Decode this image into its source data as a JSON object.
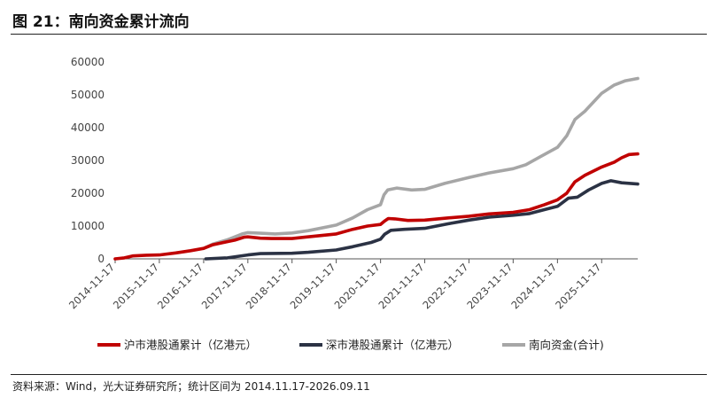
{
  "header": {
    "title": "图 21：南向资金累计流向"
  },
  "footer": {
    "source": "资料来源：Wind，光大证券研究所；统计区间为 2014.11.17-2026.09.11"
  },
  "chart_data": {
    "type": "line",
    "title": "图 21：南向资金累计流向",
    "xlabel": "",
    "ylabel": "",
    "ylim": [
      0,
      60000
    ],
    "yticks": [
      0,
      10000,
      20000,
      30000,
      40000,
      50000,
      60000
    ],
    "xticks": [
      "2014-11-17",
      "2015-11-17",
      "2016-11-17",
      "2017-11-17",
      "2018-11-17",
      "2019-11-17",
      "2020-11-17",
      "2021-11-17",
      "2022-11-17",
      "2023-11-17",
      "2024-11-17",
      "2025-11-17"
    ],
    "xlim": [
      "2014-11-17",
      "2026-09-11"
    ],
    "grid": false,
    "legend_position": "bottom",
    "series": [
      {
        "name": "沪市港股通累计（亿港元）",
        "color": "#c00000",
        "points": [
          [
            "2014-11-17",
            0
          ],
          [
            "2015-02-01",
            300
          ],
          [
            "2015-04-10",
            900
          ],
          [
            "2015-08-01",
            1100
          ],
          [
            "2015-11-17",
            1200
          ],
          [
            "2016-04-01",
            1800
          ],
          [
            "2016-08-01",
            2500
          ],
          [
            "2016-11-17",
            3200
          ],
          [
            "2017-02-01",
            4300
          ],
          [
            "2017-05-01",
            5000
          ],
          [
            "2017-08-01",
            5700
          ],
          [
            "2017-10-15",
            6600
          ],
          [
            "2017-11-17",
            6700
          ],
          [
            "2018-03-01",
            6300
          ],
          [
            "2018-06-01",
            6200
          ],
          [
            "2018-11-17",
            6200
          ],
          [
            "2019-03-01",
            6600
          ],
          [
            "2019-08-01",
            7200
          ],
          [
            "2019-11-17",
            7600
          ],
          [
            "2020-04-01",
            9000
          ],
          [
            "2020-08-01",
            10000
          ],
          [
            "2020-11-17",
            10500
          ],
          [
            "2020-12-20",
            11500
          ],
          [
            "2021-01-20",
            12300
          ],
          [
            "2021-03-15",
            12200
          ],
          [
            "2021-07-01",
            11700
          ],
          [
            "2021-11-17",
            11800
          ],
          [
            "2022-06-01",
            12500
          ],
          [
            "2022-11-17",
            13000
          ],
          [
            "2023-05-01",
            13700
          ],
          [
            "2023-11-17",
            14200
          ],
          [
            "2024-04-01",
            15000
          ],
          [
            "2024-08-01",
            16500
          ],
          [
            "2024-11-17",
            18000
          ],
          [
            "2025-02-01",
            20000
          ],
          [
            "2025-04-10",
            23500
          ],
          [
            "2025-07-01",
            25500
          ],
          [
            "2025-11-17",
            28000
          ],
          [
            "2026-03-01",
            29500
          ],
          [
            "2026-05-01",
            30800
          ],
          [
            "2026-07-01",
            31800
          ],
          [
            "2026-09-11",
            32000
          ]
        ]
      },
      {
        "name": "深市港股通累计（亿港元）",
        "color": "#2b3244",
        "points": [
          [
            "2016-12-05",
            0
          ],
          [
            "2017-06-01",
            300
          ],
          [
            "2017-11-17",
            1200
          ],
          [
            "2018-03-01",
            1600
          ],
          [
            "2018-11-17",
            1700
          ],
          [
            "2019-04-01",
            2000
          ],
          [
            "2019-11-17",
            2700
          ],
          [
            "2020-04-01",
            3700
          ],
          [
            "2020-09-01",
            5000
          ],
          [
            "2020-11-17",
            6000
          ],
          [
            "2020-12-20",
            7500
          ],
          [
            "2021-02-10",
            8700
          ],
          [
            "2021-06-01",
            9000
          ],
          [
            "2021-11-17",
            9300
          ],
          [
            "2022-06-01",
            10700
          ],
          [
            "2022-11-17",
            11800
          ],
          [
            "2023-05-01",
            12700
          ],
          [
            "2023-11-17",
            13300
          ],
          [
            "2024-04-01",
            13800
          ],
          [
            "2024-08-01",
            15000
          ],
          [
            "2024-11-17",
            16000
          ],
          [
            "2025-02-15",
            18500
          ],
          [
            "2025-05-01",
            18800
          ],
          [
            "2025-08-01",
            21000
          ],
          [
            "2025-11-17",
            23000
          ],
          [
            "2026-02-01",
            23800
          ],
          [
            "2026-05-01",
            23200
          ],
          [
            "2026-09-11",
            22800
          ]
        ]
      },
      {
        "name": "南向资金(合计)",
        "color": "#a6a6a6",
        "points": [
          [
            "2016-11-17",
            3200
          ],
          [
            "2017-02-01",
            4500
          ],
          [
            "2017-06-01",
            5800
          ],
          [
            "2017-10-01",
            7600
          ],
          [
            "2017-11-17",
            8000
          ],
          [
            "2018-03-01",
            7800
          ],
          [
            "2018-07-01",
            7600
          ],
          [
            "2018-11-17",
            7900
          ],
          [
            "2019-04-01",
            8600
          ],
          [
            "2019-11-17",
            10300
          ],
          [
            "2020-04-01",
            12500
          ],
          [
            "2020-08-01",
            15000
          ],
          [
            "2020-11-17",
            16500
          ],
          [
            "2020-12-15",
            19500
          ],
          [
            "2021-01-15",
            21000
          ],
          [
            "2021-04-01",
            21600
          ],
          [
            "2021-08-01",
            21000
          ],
          [
            "2021-11-17",
            21200
          ],
          [
            "2022-05-01",
            23000
          ],
          [
            "2022-11-17",
            24800
          ],
          [
            "2023-05-01",
            26200
          ],
          [
            "2023-11-17",
            27500
          ],
          [
            "2024-03-01",
            28700
          ],
          [
            "2024-07-01",
            31200
          ],
          [
            "2024-11-17",
            34000
          ],
          [
            "2025-02-01",
            37500
          ],
          [
            "2025-04-10",
            42500
          ],
          [
            "2025-07-01",
            45000
          ],
          [
            "2025-11-17",
            50500
          ],
          [
            "2026-03-01",
            53000
          ],
          [
            "2026-06-01",
            54300
          ],
          [
            "2026-09-11",
            55000
          ]
        ]
      }
    ]
  }
}
